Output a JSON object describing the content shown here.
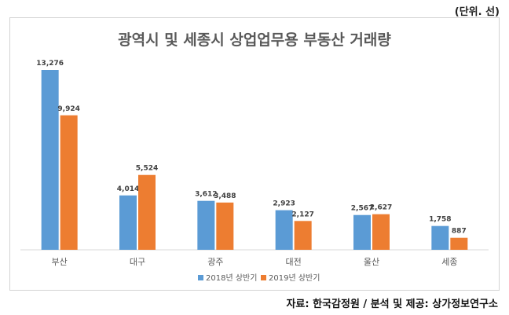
{
  "unit_note": "(단위. 선)",
  "source_note": "자료: 한국감정원 / 분석 및 제공: 상가정보연구소",
  "colors": {
    "series1": "#5b9bd5",
    "series2": "#ed7d31",
    "axis": "#d9d9d9",
    "text": "#595959"
  },
  "chart_data": {
    "type": "bar",
    "title": "광역시 및 세종시 상업업무용 부동산 거래량",
    "xlabel": "",
    "ylabel": "",
    "ylim": [
      0,
      14000
    ],
    "grid": false,
    "legend": "bottom",
    "categories": [
      "부산",
      "대구",
      "광주",
      "대전",
      "울산",
      "세종"
    ],
    "series": [
      {
        "name": "2018년 상반기",
        "values": [
          13276,
          4014,
          3612,
          2923,
          2567,
          1758
        ],
        "labels": [
          "13,276",
          "4,014",
          "3,612",
          "2,923",
          "2,567",
          "1,758"
        ]
      },
      {
        "name": "2019년 상반기",
        "values": [
          9924,
          5524,
          3488,
          2127,
          2627,
          887
        ],
        "labels": [
          "9,924",
          "5,524",
          "3,488",
          "2,127",
          "2,627",
          "887"
        ]
      }
    ]
  }
}
